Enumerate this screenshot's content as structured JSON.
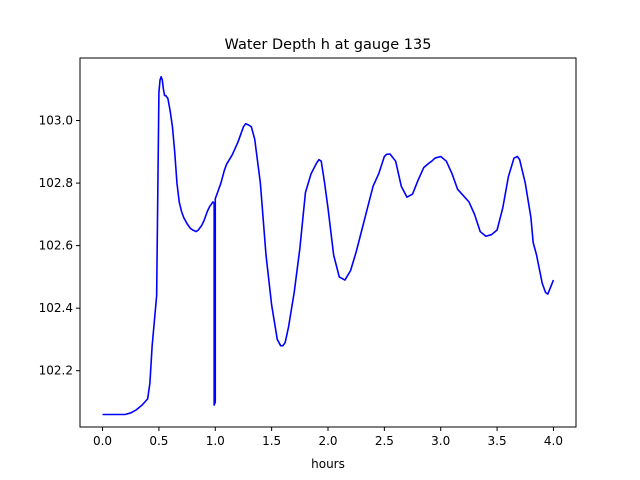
{
  "chart_data": {
    "type": "line",
    "title": "Water Depth h at gauge 135",
    "xlabel": "hours",
    "ylabel": "",
    "xlim": [
      -0.2,
      4.2
    ],
    "ylim": [
      102.02,
      103.2
    ],
    "xticks": [
      0.0,
      0.5,
      1.0,
      1.5,
      2.0,
      2.5,
      3.0,
      3.5,
      4.0
    ],
    "xtick_labels": [
      "0.0",
      "0.5",
      "1.0",
      "1.5",
      "2.0",
      "2.5",
      "3.0",
      "3.5",
      "4.0"
    ],
    "yticks": [
      102.2,
      102.4,
      102.6,
      102.8,
      103.0
    ],
    "ytick_labels": [
      "102.2",
      "102.4",
      "102.6",
      "102.8",
      "103.0"
    ],
    "grid": false,
    "series": [
      {
        "color": "#0000ff",
        "x": [
          0.0,
          0.1,
          0.2,
          0.25,
          0.3,
          0.35,
          0.4,
          0.42,
          0.44,
          0.46,
          0.48,
          0.5,
          0.5,
          0.51,
          0.52,
          0.53,
          0.54,
          0.55,
          0.56,
          0.58,
          0.6,
          0.62,
          0.64,
          0.66,
          0.68,
          0.7,
          0.72,
          0.75,
          0.78,
          0.8,
          0.83,
          0.85,
          0.88,
          0.9,
          0.93,
          0.95,
          0.97,
          0.98,
          0.99,
          0.99,
          1.0,
          1.0,
          1.02,
          1.05,
          1.08,
          1.1,
          1.15,
          1.2,
          1.25,
          1.27,
          1.3,
          1.32,
          1.35,
          1.4,
          1.45,
          1.5,
          1.55,
          1.58,
          1.6,
          1.62,
          1.65,
          1.7,
          1.75,
          1.8,
          1.85,
          1.9,
          1.92,
          1.94,
          1.97,
          2.0,
          2.05,
          2.1,
          2.15,
          2.2,
          2.25,
          2.3,
          2.35,
          2.4,
          2.45,
          2.5,
          2.52,
          2.55,
          2.6,
          2.65,
          2.7,
          2.75,
          2.8,
          2.85,
          2.9,
          2.92,
          2.95,
          3.0,
          3.05,
          3.1,
          3.15,
          3.2,
          3.25,
          3.3,
          3.35,
          3.4,
          3.45,
          3.5,
          3.55,
          3.6,
          3.65,
          3.68,
          3.7,
          3.75,
          3.8,
          3.82,
          3.85,
          3.9,
          3.93,
          3.95,
          4.0
        ],
        "y": [
          102.06,
          102.06,
          102.06,
          102.065,
          102.075,
          102.09,
          102.11,
          102.16,
          102.28,
          102.36,
          102.44,
          103.09,
          103.09,
          103.13,
          103.14,
          103.13,
          103.1,
          103.08,
          103.08,
          103.07,
          103.03,
          102.98,
          102.9,
          102.8,
          102.74,
          102.71,
          102.69,
          102.67,
          102.655,
          102.65,
          102.645,
          102.65,
          102.665,
          102.68,
          102.71,
          102.725,
          102.735,
          102.74,
          102.735,
          102.09,
          102.1,
          102.75,
          102.77,
          102.8,
          102.84,
          102.86,
          102.89,
          102.93,
          102.98,
          102.99,
          102.985,
          102.98,
          102.94,
          102.8,
          102.57,
          102.41,
          102.3,
          102.28,
          102.28,
          102.29,
          102.34,
          102.45,
          102.59,
          102.77,
          102.83,
          102.865,
          102.875,
          102.87,
          102.8,
          102.72,
          102.57,
          102.5,
          102.49,
          102.52,
          102.58,
          102.65,
          102.72,
          102.79,
          102.83,
          102.885,
          102.892,
          102.893,
          102.87,
          102.79,
          102.755,
          102.765,
          102.81,
          102.85,
          102.865,
          102.87,
          102.88,
          102.885,
          102.87,
          102.83,
          102.78,
          102.76,
          102.74,
          102.7,
          102.645,
          102.63,
          102.635,
          102.65,
          102.72,
          102.82,
          102.88,
          102.885,
          102.875,
          102.8,
          102.69,
          102.61,
          102.57,
          102.48,
          102.45,
          102.445,
          102.49
        ]
      }
    ]
  }
}
